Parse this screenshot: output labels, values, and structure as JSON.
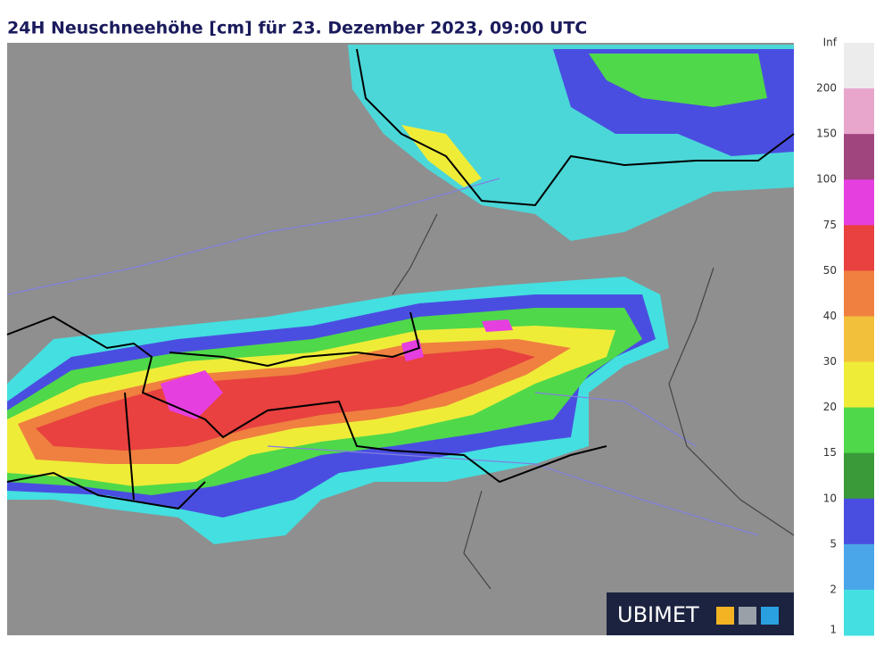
{
  "title": "24H Neuschneehöhe [cm] für 23. Dezember 2023, 09:00 UTC",
  "legend": {
    "labels": [
      "Inf",
      "200",
      "150",
      "100",
      "75",
      "50",
      "40",
      "30",
      "20",
      "15",
      "10",
      "5",
      "2",
      "1"
    ],
    "colors": [
      "#ececec",
      "#e8a6cc",
      "#a0457e",
      "#e53fe0",
      "#e8413f",
      "#ef8040",
      "#f3c03c",
      "#efec38",
      "#4fd84a",
      "#3a9a3a",
      "#4a4ee0",
      "#4aa6e8",
      "#44dfe0"
    ]
  },
  "logo": "UBIMET"
}
